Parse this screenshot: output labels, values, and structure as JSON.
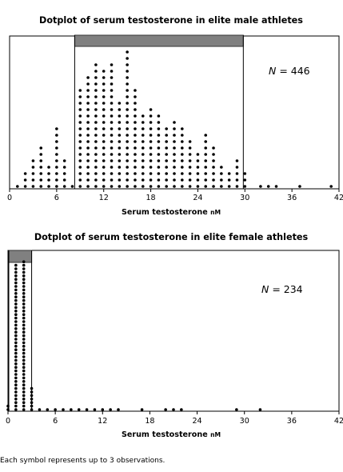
{
  "chart_data": [
    {
      "type": "dotplot",
      "title": "Dotplot of serum testosterone in elite male athletes",
      "xlabel": "Serum testosterone nM",
      "xlabel_main": "Serum testosterone ",
      "xlabel_unit": "nM",
      "n_label": {
        "prefix": "N",
        "suffix": " = 446"
      },
      "xlim": [
        0,
        42
      ],
      "xticks": [
        0,
        6,
        12,
        18,
        24,
        30,
        36,
        42
      ],
      "tick_labels": [
        "0",
        "6",
        "12",
        "18",
        "24",
        "30",
        "36",
        "42"
      ],
      "range_bar": [
        8.3,
        29.8
      ],
      "x": [
        1,
        2,
        3,
        4,
        5,
        6,
        7,
        8,
        9,
        10,
        11,
        12,
        13,
        14,
        15,
        16,
        17,
        18,
        19,
        20,
        21,
        22,
        23,
        24,
        25,
        26,
        27,
        28,
        29,
        30,
        32,
        33,
        34,
        37,
        41
      ],
      "counts": [
        1,
        3,
        5,
        7,
        4,
        10,
        5,
        1,
        16,
        18,
        20,
        19,
        20,
        14,
        22,
        16,
        12,
        13,
        12,
        10,
        11,
        10,
        8,
        6,
        9,
        7,
        4,
        3,
        5,
        3,
        1,
        1,
        1,
        1,
        1
      ]
    },
    {
      "type": "dotplot",
      "title": "Dotplot of serum testosterone in elite female athletes",
      "xlabel": "Serum testosterone nM",
      "xlabel_main": "Serum testosterone ",
      "xlabel_unit": "nM",
      "n_label": {
        "prefix": "N",
        "suffix": " = 234"
      },
      "xlim": [
        0,
        42
      ],
      "xticks": [
        0,
        6,
        12,
        18,
        24,
        30,
        36,
        42
      ],
      "tick_labels": [
        "0",
        "6",
        "12",
        "18",
        "24",
        "30",
        "36",
        "42"
      ],
      "range_bar": [
        0.1,
        3.0
      ],
      "x": [
        0,
        1,
        2,
        3,
        4,
        5,
        6,
        7,
        8,
        9,
        10,
        11,
        12,
        13,
        14,
        17,
        20,
        21,
        22,
        29,
        32
      ],
      "counts": [
        2,
        42,
        43,
        7,
        1,
        1,
        1,
        1,
        1,
        1,
        1,
        1,
        1,
        1,
        1,
        1,
        1,
        1,
        1,
        1,
        1
      ]
    }
  ],
  "footnote": "Each symbol represents up to 3 observations."
}
